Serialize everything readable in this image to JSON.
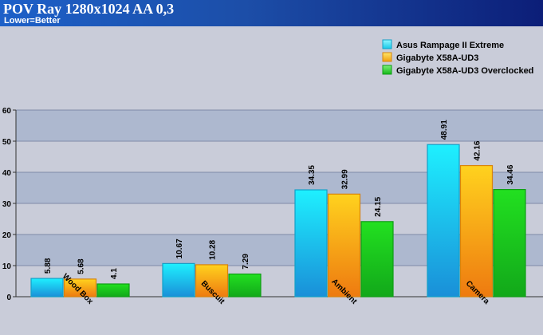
{
  "header": {
    "title": "POV Ray 1280x1024 AA 0,3",
    "subtitle": "Lower=Better"
  },
  "chart_data": {
    "type": "bar",
    "categories": [
      "Wood Box",
      "Buscuit",
      "Ambient",
      "Camera"
    ],
    "series": [
      {
        "name": "Asus Rampage II Extreme",
        "values": [
          5.88,
          10.67,
          34.35,
          48.91
        ],
        "color": "#19d6f0"
      },
      {
        "name": "Gigabyte X58A-UD3",
        "values": [
          5.68,
          10.28,
          32.99,
          42.16
        ],
        "color": "#f7b21e"
      },
      {
        "name": "Gigabyte X58A-UD3 Overclocked",
        "values": [
          4.1,
          7.29,
          24.15,
          34.46
        ],
        "color": "#1fcc1c"
      }
    ],
    "value_labels": [
      [
        "5.88",
        "10.67",
        "34.35",
        "48.91"
      ],
      [
        "5.68",
        "10.28",
        "32.99",
        "42.16"
      ],
      [
        "4.1",
        "7.29",
        "24.15",
        "34.46"
      ]
    ],
    "y_ticks": [
      "0",
      "10",
      "20",
      "30",
      "40",
      "50",
      "60"
    ],
    "ylim": [
      0,
      60
    ],
    "grid": true,
    "legend_position": "top-right"
  }
}
